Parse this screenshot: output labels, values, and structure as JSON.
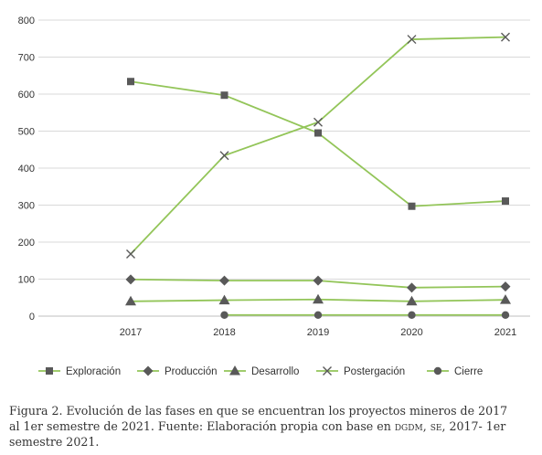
{
  "chart_data": {
    "type": "line",
    "categories": [
      "2017",
      "2018",
      "2019",
      "2020",
      "2021"
    ],
    "y_ticks": [
      0,
      100,
      200,
      300,
      400,
      500,
      600,
      700,
      800
    ],
    "ylim": [
      0,
      800
    ],
    "grid": true,
    "legend_position": "bottom",
    "line_color": "#93c559",
    "marker_color": "#595959",
    "series": [
      {
        "name": "Exploración",
        "marker": "square",
        "values": [
          634,
          597,
          495,
          297,
          311
        ]
      },
      {
        "name": "Producción",
        "marker": "diamond",
        "values": [
          99,
          96,
          96,
          77,
          80
        ]
      },
      {
        "name": "Desarrollo",
        "marker": "triangle",
        "values": [
          40,
          43,
          45,
          40,
          44
        ]
      },
      {
        "name": "Postergación",
        "marker": "x",
        "values": [
          168,
          434,
          524,
          748,
          754
        ]
      },
      {
        "name": "Cierre",
        "marker": "circle",
        "values": [
          null,
          3,
          3,
          3,
          3
        ]
      }
    ]
  },
  "caption": {
    "main": "Figura 2. Evolución de las fases en que se encuentran los proyectos mineros de 2017 al 1er semestre de 2021. Fuente: Elaboración propia con base en ",
    "sc1": "dgdm",
    "sep": ", ",
    "sc2": "se",
    "tail": ", 2017- 1er semestre 2021."
  }
}
